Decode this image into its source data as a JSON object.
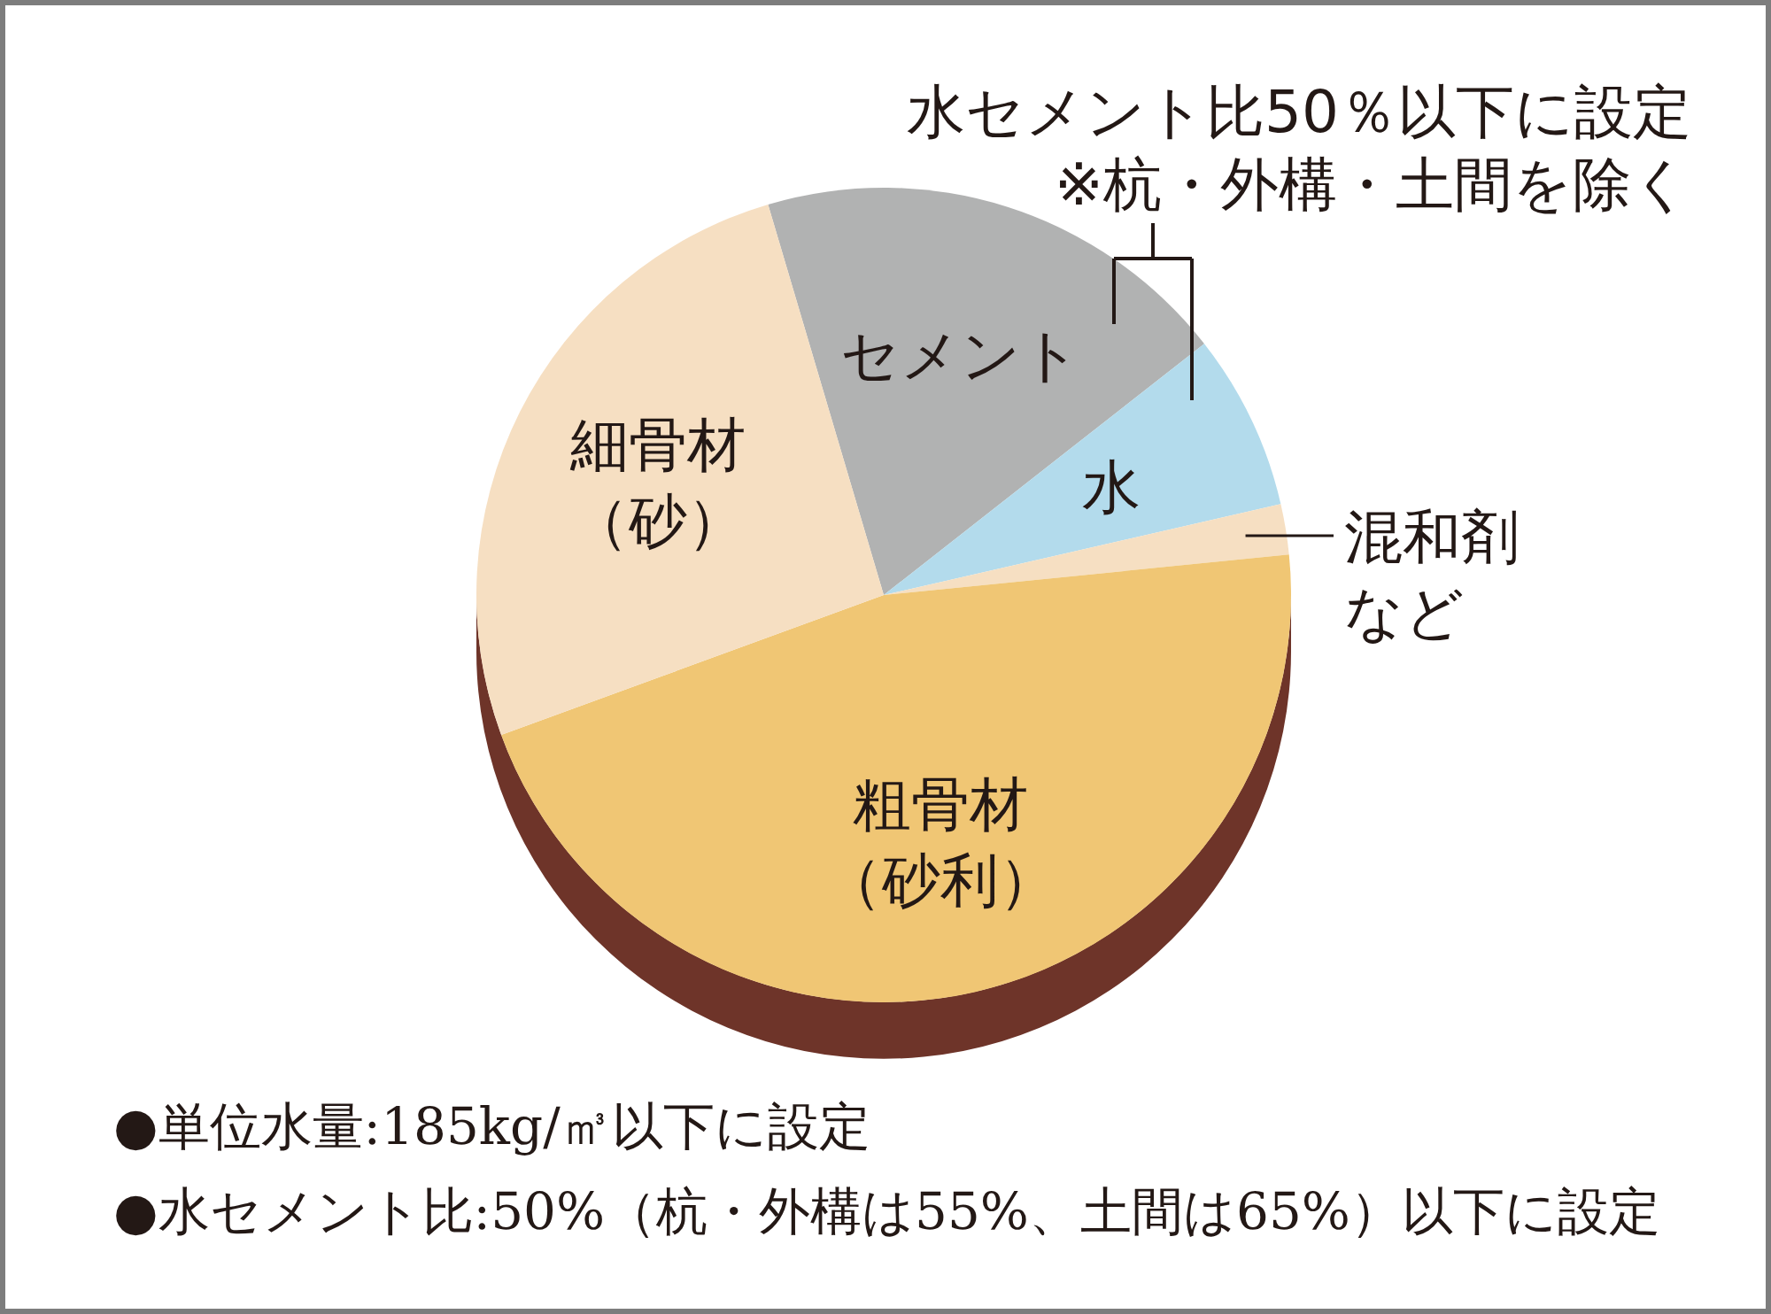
{
  "chart_data": {
    "type": "pie",
    "categories": [
      "セメント",
      "水",
      "混和剤など",
      "粗骨材（砂利）",
      "細骨材（砂）"
    ],
    "values": [
      19,
      7,
      2,
      46,
      26
    ],
    "colors": [
      "#b1b2b2",
      "#b3dbec",
      "#f6dfc2",
      "#f0c674",
      "#f6dfc2"
    ],
    "annotations": [
      "水セメント比50％以下に設定",
      "※杭・外構・土間を除く",
      "●単位水量:185kg/㎥以下に設定",
      "●水セメント比:50%（杭・外構は55%、土間は65%）以下に設定"
    ]
  }
}
